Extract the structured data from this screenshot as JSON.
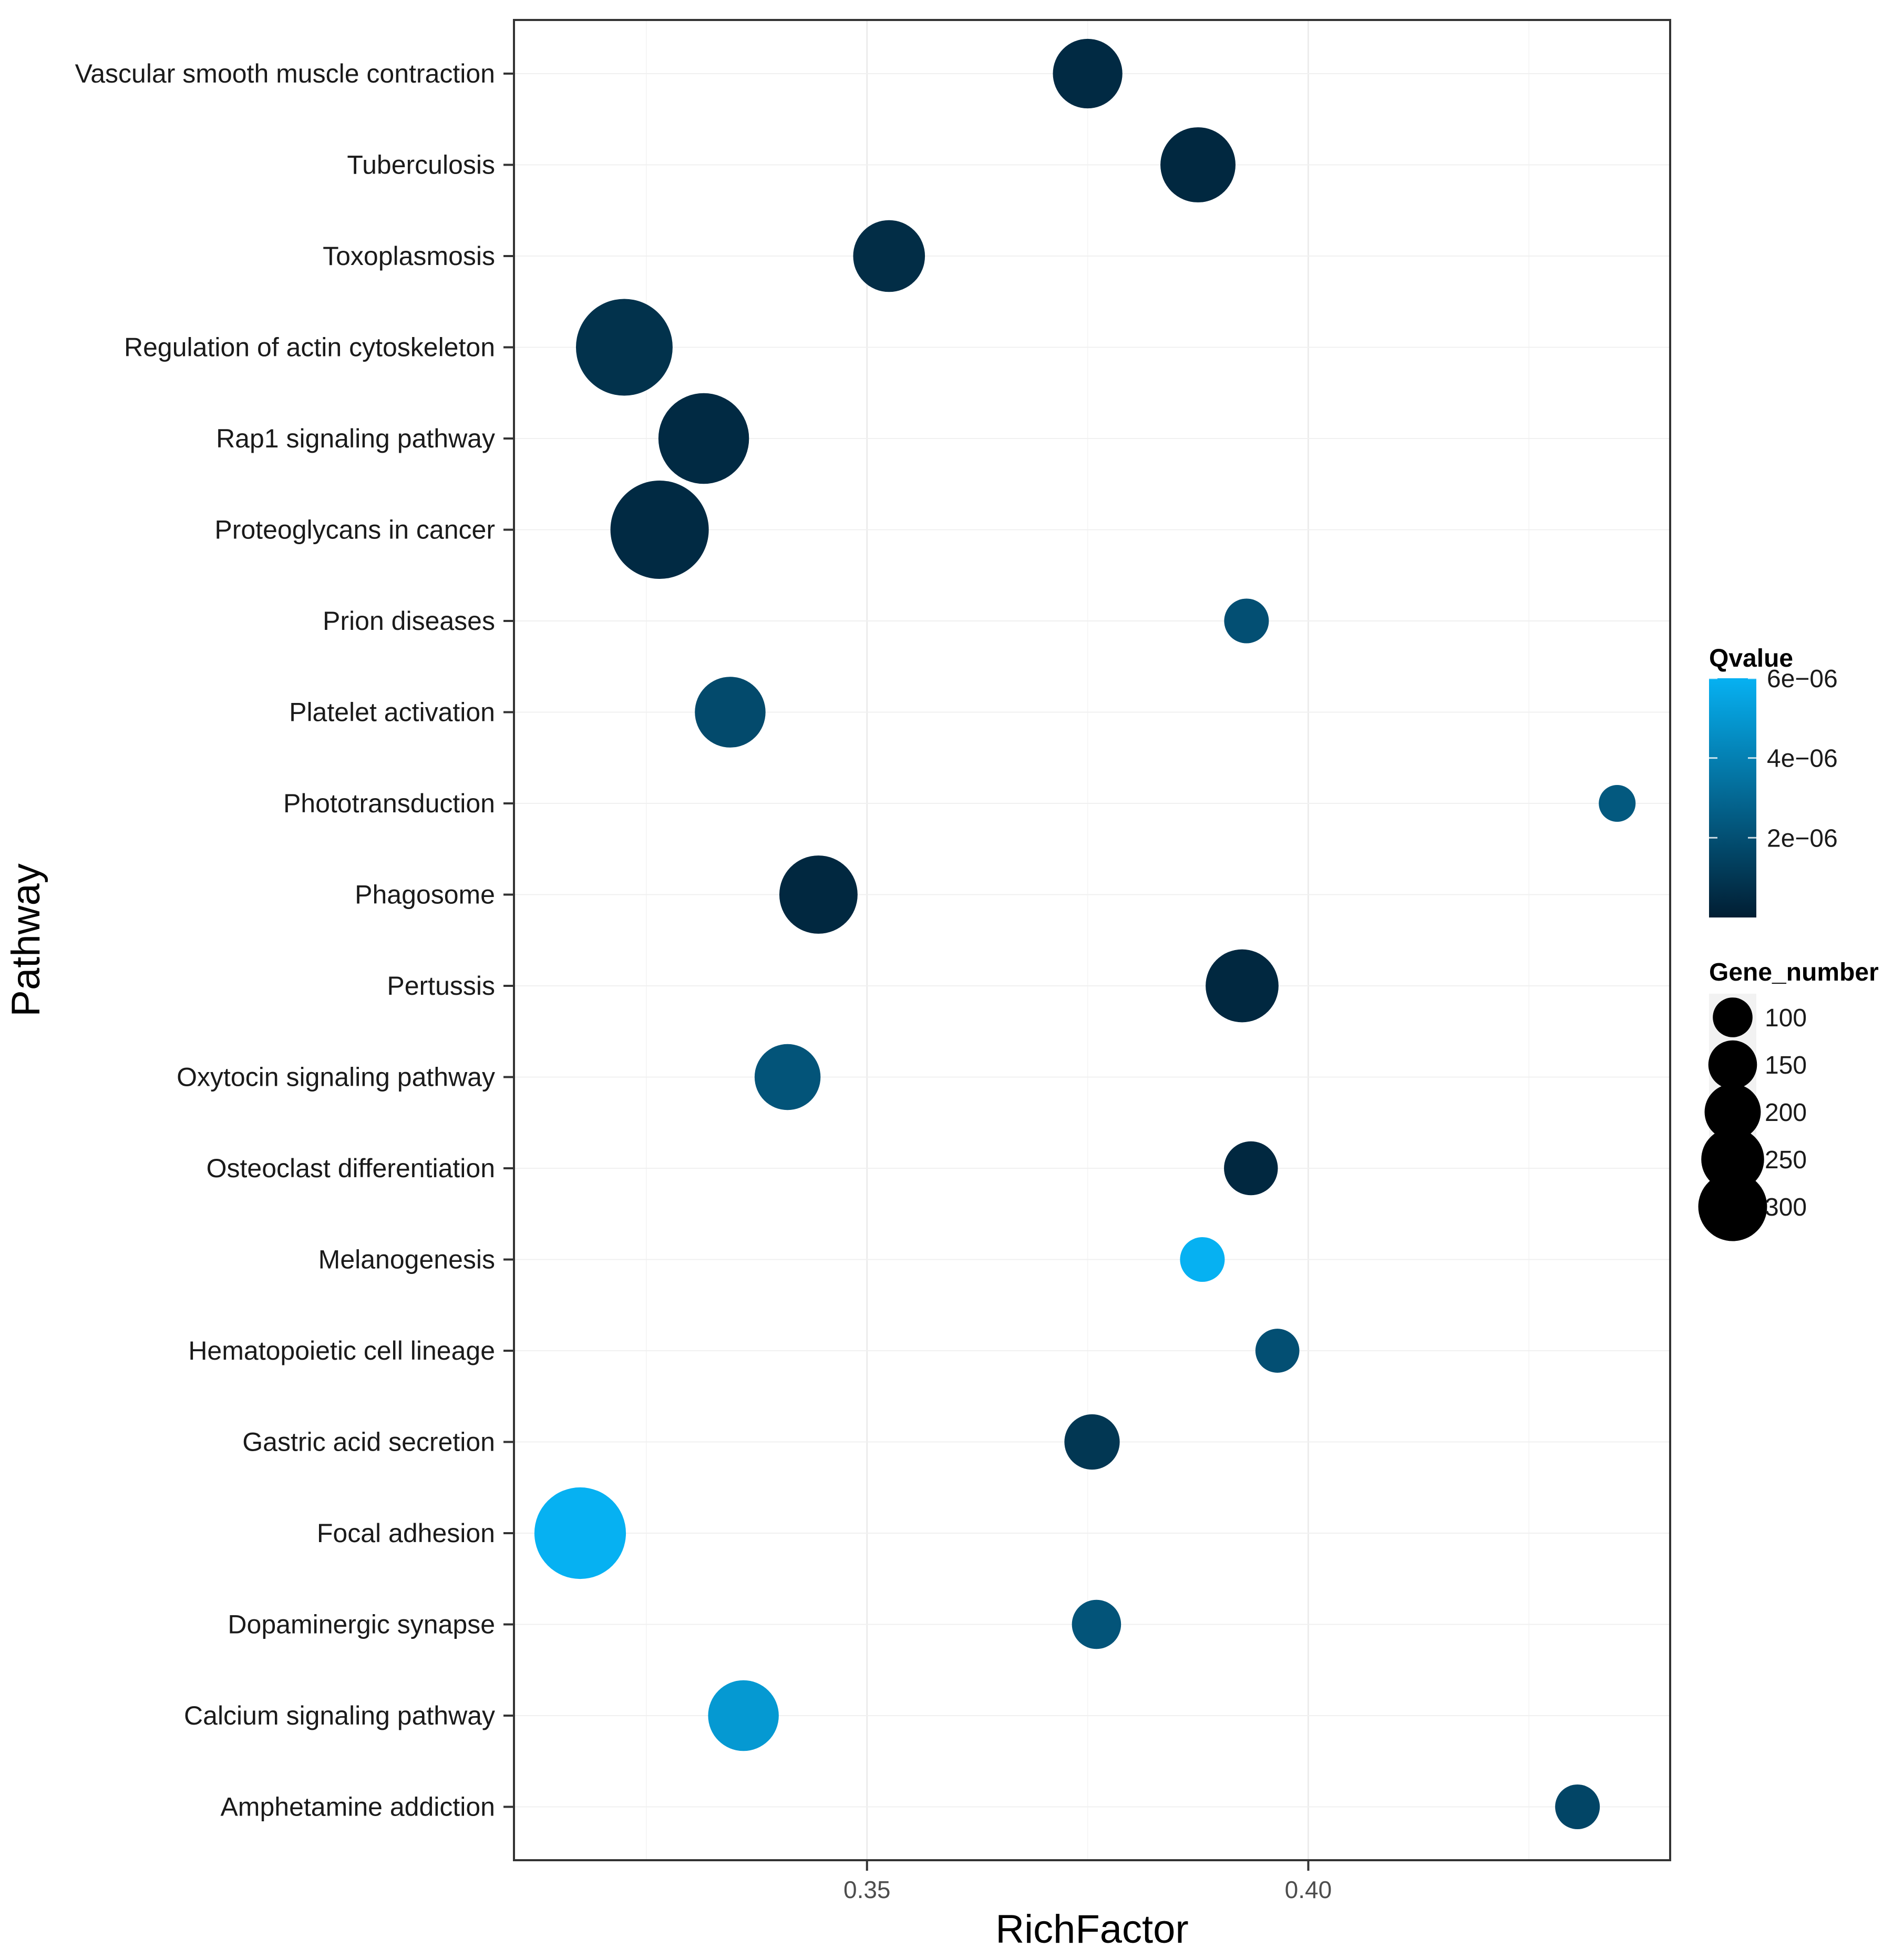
{
  "chart_data": {
    "type": "scatter",
    "xlabel": "RichFactor",
    "ylabel": "Pathway",
    "xlim": [
      0.31,
      0.441
    ],
    "xticks": [
      0.35,
      0.4
    ],
    "xtick_labels": [
      "0.35",
      "0.40"
    ],
    "grid": true,
    "legend_position": "right",
    "color_legend": {
      "title": "Qvalue",
      "min": 0,
      "max": 6e-06,
      "ticks": [
        2e-06,
        4e-06,
        6e-06
      ],
      "tick_labels": [
        "2e−06",
        "4e−06",
        "6e−06"
      ],
      "low_color": "#011e33",
      "high_color": "#06b1f2"
    },
    "size_legend": {
      "title": "Gene_number",
      "values": [
        100,
        150,
        200,
        250,
        300
      ],
      "labels": [
        "100",
        "150",
        "200",
        "250",
        "300"
      ]
    },
    "points": [
      {
        "pathway": "Vascular smooth muscle contraction",
        "rich_factor": 0.375,
        "gene_number": 150,
        "qvalue": 5e-07
      },
      {
        "pathway": "Tuberculosis",
        "rich_factor": 0.3875,
        "gene_number": 175,
        "qvalue": 4e-07
      },
      {
        "pathway": "Toxoplasmosis",
        "rich_factor": 0.3525,
        "gene_number": 160,
        "qvalue": 6e-07
      },
      {
        "pathway": "Regulation of actin cytoskeleton",
        "rich_factor": 0.3225,
        "gene_number": 290,
        "qvalue": 8e-07
      },
      {
        "pathway": "Rap1 signaling pathway",
        "rich_factor": 0.3315,
        "gene_number": 255,
        "qvalue": 5e-07
      },
      {
        "pathway": "Proteoglycans in cancer",
        "rich_factor": 0.3265,
        "gene_number": 300,
        "qvalue": 5e-07
      },
      {
        "pathway": "Prion diseases",
        "rich_factor": 0.393,
        "gene_number": 62,
        "qvalue": 2e-06
      },
      {
        "pathway": "Platelet activation",
        "rich_factor": 0.3345,
        "gene_number": 155,
        "qvalue": 1.8e-06
      },
      {
        "pathway": "Phototransduction",
        "rich_factor": 0.435,
        "gene_number": 42,
        "qvalue": 2.4e-06
      },
      {
        "pathway": "Phagosome",
        "rich_factor": 0.3445,
        "gene_number": 190,
        "qvalue": 4e-07
      },
      {
        "pathway": "Pertussis",
        "rich_factor": 0.3925,
        "gene_number": 165,
        "qvalue": 4e-07
      },
      {
        "pathway": "Oxytocin signaling pathway",
        "rich_factor": 0.341,
        "gene_number": 135,
        "qvalue": 2.2e-06
      },
      {
        "pathway": "Osteoclast differentiation",
        "rich_factor": 0.3935,
        "gene_number": 90,
        "qvalue": 4e-07
      },
      {
        "pathway": "Melanogenesis",
        "rich_factor": 0.388,
        "gene_number": 62,
        "qvalue": 6e-06
      },
      {
        "pathway": "Hematopoietic cell lineage",
        "rich_factor": 0.3965,
        "gene_number": 60,
        "qvalue": 2e-06
      },
      {
        "pathway": "Gastric acid secretion",
        "rich_factor": 0.3755,
        "gene_number": 95,
        "qvalue": 1e-06
      },
      {
        "pathway": "Focal adhesion",
        "rich_factor": 0.3175,
        "gene_number": 260,
        "qvalue": 6e-06
      },
      {
        "pathway": "Dopaminergic synapse",
        "rich_factor": 0.376,
        "gene_number": 75,
        "qvalue": 2.2e-06
      },
      {
        "pathway": "Calcium signaling pathway",
        "rich_factor": 0.336,
        "gene_number": 155,
        "qvalue": 5e-06
      },
      {
        "pathway": "Amphetamine addiction",
        "rich_factor": 0.4305,
        "gene_number": 62,
        "qvalue": 1.6e-06
      }
    ]
  }
}
